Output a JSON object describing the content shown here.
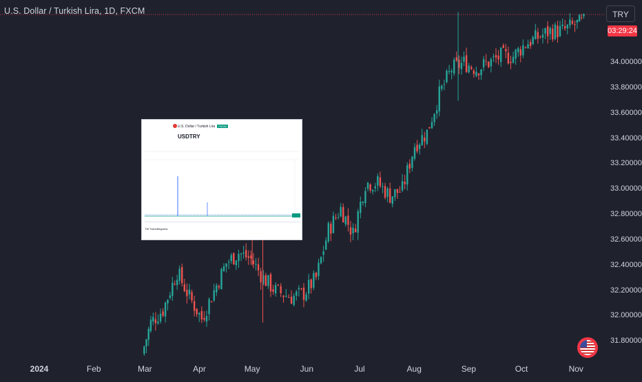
{
  "header": {
    "title": "U.S. Dollar / Turkish Lira, 1D, FXCM",
    "currency": "TRY",
    "countdown": "03:29:24"
  },
  "colors": {
    "background": "#1f222d",
    "up": "#26a69a",
    "down": "#ef5350",
    "price_line": "#f23645",
    "text": "#d1d4dc"
  },
  "chart_data": {
    "type": "candlestick",
    "title": "U.S. Dollar / Turkish Lira, 1D, FXCM",
    "x_ticks": [
      "2024",
      "Feb",
      "Mar",
      "Apr",
      "May",
      "Jun",
      "Jul",
      "Aug",
      "Sep",
      "Oct",
      "Nov"
    ],
    "y_ticks": [
      "31.80000",
      "32.00000",
      "32.20000",
      "32.40000",
      "32.60000",
      "32.80000",
      "33.00000",
      "33.20000",
      "33.40000",
      "33.60000",
      "33.80000",
      "34.00000"
    ],
    "y_range": [
      31.66,
      34.44
    ],
    "last_price_line": 34.38,
    "grid": false,
    "anchors": [
      {
        "date": "2024-02-29",
        "price": 31.7
      },
      {
        "date": "2024-03-05",
        "price": 31.95
      },
      {
        "date": "2024-03-12",
        "price": 32.05
      },
      {
        "date": "2024-03-20",
        "price": 32.35
      },
      {
        "date": "2024-03-27",
        "price": 32.15
      },
      {
        "date": "2024-04-03",
        "price": 31.98
      },
      {
        "date": "2024-04-10",
        "price": 32.2
      },
      {
        "date": "2024-04-17",
        "price": 32.42
      },
      {
        "date": "2024-04-24",
        "price": 32.5
      },
      {
        "date": "2024-05-01",
        "price": 32.45
      },
      {
        "date": "2024-05-08",
        "price": 32.3
      },
      {
        "date": "2024-05-15",
        "price": 32.2
      },
      {
        "date": "2024-05-24",
        "price": 32.15
      },
      {
        "date": "2024-05-31",
        "price": 32.18
      },
      {
        "date": "2024-06-07",
        "price": 32.3
      },
      {
        "date": "2024-06-14",
        "price": 32.68
      },
      {
        "date": "2024-06-21",
        "price": 32.85
      },
      {
        "date": "2024-06-28",
        "price": 32.65
      },
      {
        "date": "2024-07-05",
        "price": 33.05
      },
      {
        "date": "2024-07-12",
        "price": 33.05
      },
      {
        "date": "2024-07-19",
        "price": 32.95
      },
      {
        "date": "2024-07-26",
        "price": 33.0
      },
      {
        "date": "2024-08-02",
        "price": 33.35
      },
      {
        "date": "2024-08-09",
        "price": 33.45
      },
      {
        "date": "2024-08-16",
        "price": 33.75
      },
      {
        "date": "2024-08-23",
        "price": 33.95
      },
      {
        "date": "2024-08-30",
        "price": 34.0
      },
      {
        "date": "2024-09-06",
        "price": 33.95
      },
      {
        "date": "2024-09-13",
        "price": 34.0
      },
      {
        "date": "2024-09-20",
        "price": 34.05
      },
      {
        "date": "2024-09-27",
        "price": 34.05
      },
      {
        "date": "2024-10-04",
        "price": 34.15
      },
      {
        "date": "2024-10-11",
        "price": 34.2
      },
      {
        "date": "2024-10-18",
        "price": 34.25
      },
      {
        "date": "2024-10-25",
        "price": 34.25
      },
      {
        "date": "2024-11-01",
        "price": 34.3
      },
      {
        "date": "2024-11-06",
        "price": 34.32
      }
    ]
  },
  "inset": {
    "header": "U.S. Dollar / Turkish Lira",
    "badge": "FXCM",
    "symbol": "USDTRY",
    "footer": "TW Tweedtingview"
  }
}
